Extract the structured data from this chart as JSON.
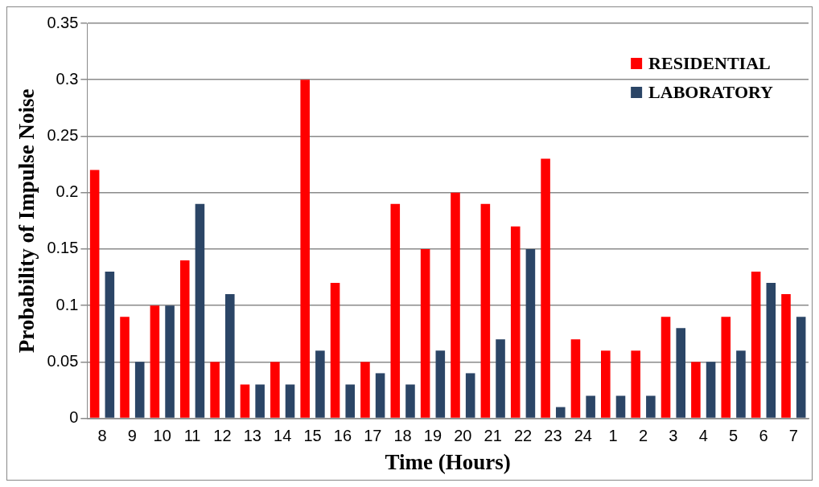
{
  "chart_data": {
    "type": "bar",
    "xlabel": "Time (Hours)",
    "ylabel": "Probability of Impulse Noise",
    "categories": [
      "8",
      "9",
      "10",
      "11",
      "12",
      "13",
      "14",
      "15",
      "16",
      "17",
      "18",
      "19",
      "20",
      "21",
      "22",
      "23",
      "24",
      "1",
      "2",
      "3",
      "4",
      "5",
      "6",
      "7"
    ],
    "series": [
      {
        "name": "RESIDENTIAL",
        "color": "#ff0000",
        "values": [
          0.22,
          0.09,
          0.1,
          0.14,
          0.05,
          0.03,
          0.05,
          0.3,
          0.12,
          0.05,
          0.19,
          0.15,
          0.2,
          0.19,
          0.17,
          0.23,
          0.07,
          0.06,
          0.06,
          0.09,
          0.05,
          0.09,
          0.13,
          0.11
        ]
      },
      {
        "name": "LABORATORY",
        "color": "#2b4566",
        "values": [
          0.13,
          0.05,
          0.1,
          0.19,
          0.11,
          0.03,
          0.03,
          0.06,
          0.03,
          0.04,
          0.03,
          0.06,
          0.04,
          0.07,
          0.15,
          0.01,
          0.02,
          0.02,
          0.02,
          0.08,
          0.05,
          0.06,
          0.12,
          0.09
        ]
      }
    ],
    "ylim": [
      0,
      0.35
    ],
    "yticks": [
      0,
      0.05,
      0.1,
      0.15,
      0.2,
      0.25,
      0.3,
      0.35
    ],
    "grid": "y",
    "legend": "top right"
  }
}
